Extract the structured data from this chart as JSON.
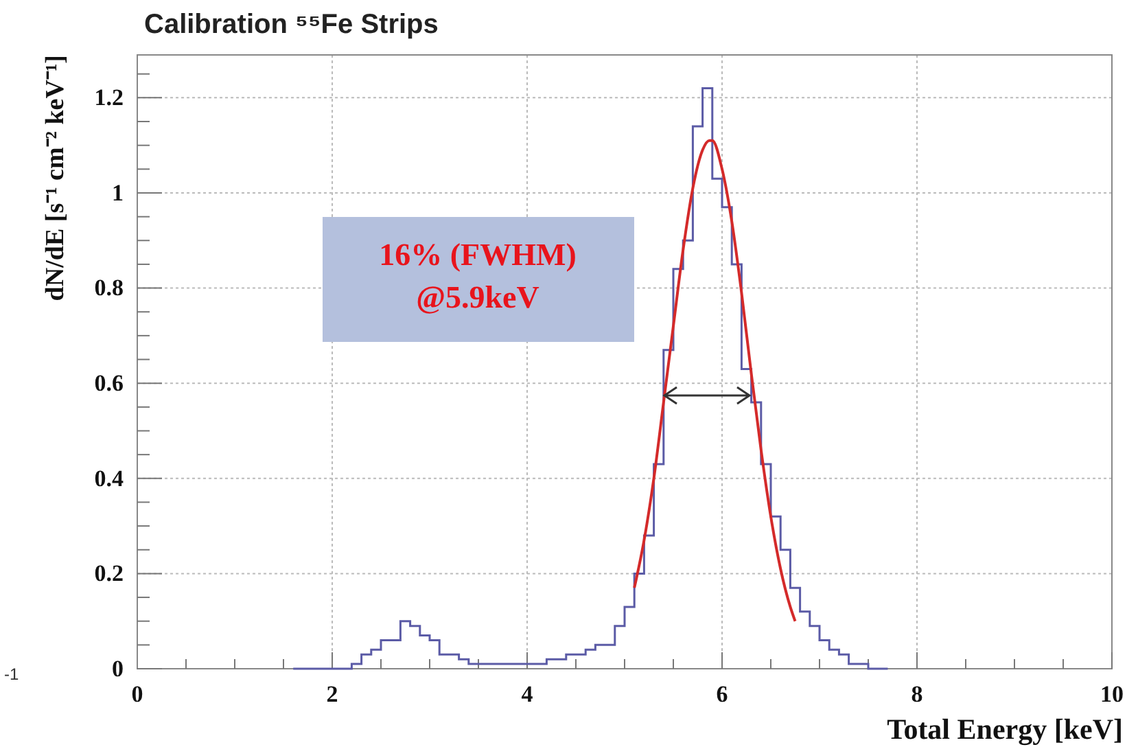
{
  "chart_data": {
    "type": "histogram",
    "title": "Calibration ⁵⁵Fe Strips",
    "xlabel": "Total Energy [keV]",
    "ylabel": "dN/dE  [s⁻¹ cm⁻² keV⁻¹]",
    "xlim": [
      0,
      10
    ],
    "ylim": [
      0,
      1.29
    ],
    "xticks": [
      0,
      {
        "value": 0.5,
        "label": null
      },
      {
        "value": 1,
        "label": null
      },
      {
        "value": 1.5,
        "label": null
      },
      2,
      {
        "value": 2.5,
        "label": null
      },
      {
        "value": 3,
        "label": null
      },
      {
        "value": 3.5,
        "label": null
      },
      4,
      {
        "value": 4.5,
        "label": null
      },
      {
        "value": 5,
        "label": null
      },
      {
        "value": 5.5,
        "label": null
      },
      6,
      {
        "value": 6.5,
        "label": null
      },
      {
        "value": 7,
        "label": null
      },
      {
        "value": 7.5,
        "label": null
      },
      8,
      {
        "value": 8.5,
        "label": null
      },
      {
        "value": 9,
        "label": null
      },
      {
        "value": 9.5,
        "label": null
      },
      10
    ],
    "yticks": [
      0,
      {
        "value": 0.05,
        "label": null
      },
      {
        "value": 0.1,
        "label": null
      },
      {
        "value": 0.15,
        "label": null
      },
      0.2,
      {
        "value": 0.25,
        "label": null
      },
      {
        "value": 0.3,
        "label": null
      },
      {
        "value": 0.35,
        "label": null
      },
      0.4,
      {
        "value": 0.45,
        "label": null
      },
      {
        "value": 0.5,
        "label": null
      },
      {
        "value": 0.55,
        "label": null
      },
      0.6,
      {
        "value": 0.65,
        "label": null
      },
      {
        "value": 0.7,
        "label": null
      },
      {
        "value": 0.75,
        "label": null
      },
      0.8,
      {
        "value": 0.85,
        "label": null
      },
      {
        "value": 0.9,
        "label": null
      },
      {
        "value": 0.95,
        "label": null
      },
      1,
      {
        "value": 1.05,
        "label": null
      },
      {
        "value": 1.1,
        "label": null
      },
      {
        "value": 1.15,
        "label": null
      },
      1.2,
      {
        "value": 1.25,
        "label": null
      }
    ],
    "grid": true,
    "series": [
      {
        "color": "#5b5ba6",
        "bins": [
          1.6,
          1.7,
          1.8,
          1.9,
          2.0,
          2.1,
          2.2,
          2.3,
          2.4,
          2.5,
          2.6,
          2.7,
          2.8,
          2.9,
          3.0,
          3.1,
          3.2,
          3.3,
          3.4,
          3.5,
          3.6,
          3.7,
          3.8,
          3.9,
          4.0,
          4.1,
          4.2,
          4.3,
          4.4,
          4.5,
          4.6,
          4.7,
          4.8,
          4.9,
          5.0,
          5.1,
          5.2,
          5.3,
          5.4,
          5.5,
          5.6,
          5.7,
          5.8,
          5.9,
          6.0,
          6.1,
          6.2,
          6.3,
          6.4,
          6.5,
          6.6,
          6.7,
          6.8,
          6.9,
          7.0,
          7.1,
          7.2,
          7.3,
          7.4,
          7.5,
          7.6,
          7.7
        ],
        "values": [
          0.0,
          0.0,
          0.0,
          0.0,
          0.0,
          0.0,
          0.01,
          0.03,
          0.04,
          0.06,
          0.06,
          0.1,
          0.09,
          0.07,
          0.06,
          0.03,
          0.03,
          0.02,
          0.01,
          0.01,
          0.01,
          0.01,
          0.01,
          0.01,
          0.01,
          0.01,
          0.02,
          0.02,
          0.03,
          0.03,
          0.04,
          0.05,
          0.05,
          0.09,
          0.13,
          0.2,
          0.28,
          0.43,
          0.67,
          0.84,
          0.9,
          1.14,
          1.22,
          1.03,
          0.97,
          0.85,
          0.63,
          0.56,
          0.43,
          0.32,
          0.25,
          0.17,
          0.12,
          0.09,
          0.06,
          0.04,
          0.03,
          0.01,
          0.01,
          0.0,
          0.0
        ]
      },
      {
        "type": "line",
        "color": "#d42a2a",
        "x": [
          5.1,
          5.2,
          5.3,
          5.4,
          5.5,
          5.6,
          5.7,
          5.8,
          5.87,
          5.9,
          6.0,
          6.1,
          6.2,
          6.3,
          6.4,
          6.5,
          6.6,
          6.7,
          6.75
        ],
        "values": [
          0.17,
          0.27,
          0.4,
          0.56,
          0.72,
          0.88,
          1.01,
          1.09,
          1.11,
          1.11,
          1.05,
          0.94,
          0.79,
          0.62,
          0.46,
          0.32,
          0.21,
          0.13,
          0.1
        ]
      }
    ],
    "annotations": [
      "16% (FWHM)\n@5.9keV",
      "-1"
    ]
  }
}
